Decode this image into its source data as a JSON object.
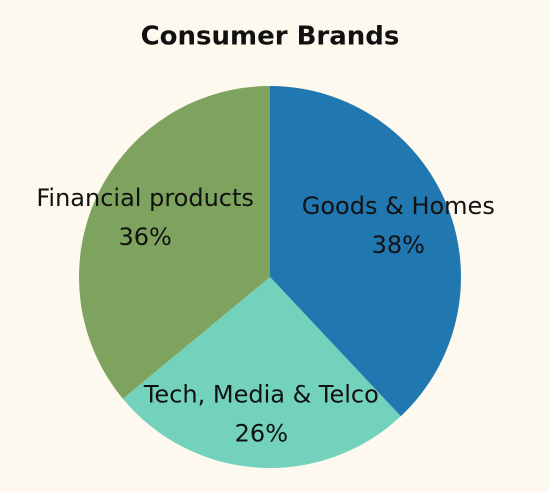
{
  "chart_data": {
    "type": "pie",
    "title": "Consumer Brands",
    "categories": [
      "Goods & Homes",
      "Tech, Media & Telco",
      "Financial products"
    ],
    "values": [
      38,
      26,
      36
    ],
    "value_labels": [
      "38%",
      "26%",
      "36%"
    ],
    "colors": [
      "#2178b0",
      "#73d2bc",
      "#7ea35f"
    ]
  }
}
